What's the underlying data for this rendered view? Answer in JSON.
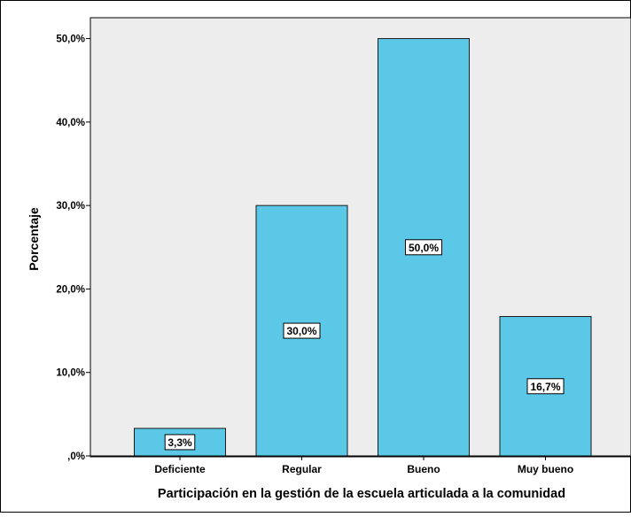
{
  "chart_data": {
    "type": "bar",
    "title": "",
    "xlabel": "Participación en la gestión de la escuela articulada a la comunidad",
    "ylabel": "Porcentaje",
    "categories": [
      "Deficiente",
      "Regular",
      "Bueno",
      "Muy bueno"
    ],
    "values": [
      3.3,
      30.0,
      50.0,
      16.7
    ],
    "value_labels": [
      "3,3%",
      "30,0%",
      "50,0%",
      "16,7%"
    ],
    "ylim": [
      0,
      52.5
    ],
    "yticks": [
      0,
      10,
      20,
      30,
      40,
      50
    ],
    "ytick_labels": [
      ",0%",
      "10,0%",
      "20,0%",
      "30,0%",
      "40,0%",
      "50,0%"
    ],
    "grid": false,
    "legend": "none",
    "colors": {
      "bar_fill": "#5bc8e8",
      "bar_stroke": "#1a1a1a",
      "plot_background": "#ededed",
      "page_background": "#ffffff",
      "axis": "#000000",
      "label_box": "#ffffff"
    }
  }
}
